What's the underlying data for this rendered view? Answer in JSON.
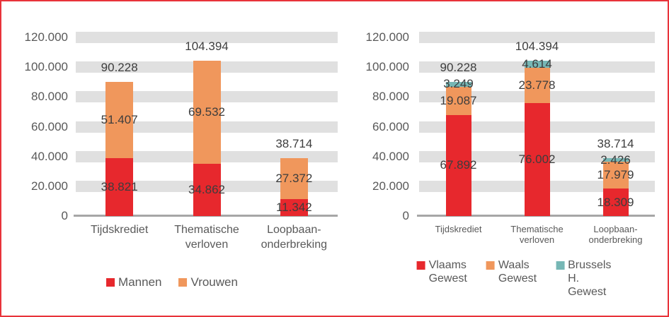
{
  "page": {
    "background": "#ffffff",
    "frame_border_color": "#E8333A"
  },
  "palette": {
    "red": "#E7282D",
    "orange": "#F0975C",
    "teal": "#76B7B5",
    "gridline_band": "#E0E0E0",
    "axis_line": "#A6A6A6",
    "axis_text": "#595959",
    "value_text": "#3D3D3D"
  },
  "chart_data": [
    {
      "type": "bar",
      "stacked": true,
      "title": "",
      "categories": [
        "Tijdskrediet",
        "Thematische verloven",
        "Loopbaan-onderbreking"
      ],
      "category_label_lines": [
        [
          "Tijdskrediet"
        ],
        [
          "Thematische",
          "verloven"
        ],
        [
          "Loopbaan-",
          "onderbreking"
        ]
      ],
      "series": [
        {
          "name": "Mannen",
          "color_key": "red",
          "values": [
            38821,
            34862,
            11342
          ],
          "value_labels": [
            "38.821",
            "34.862",
            "11.342"
          ],
          "legend_lines": [
            "Mannen"
          ]
        },
        {
          "name": "Vrouwen",
          "color_key": "orange",
          "values": [
            51407,
            69532,
            27372
          ],
          "value_labels": [
            "51.407",
            "69.532",
            "27.372"
          ],
          "legend_lines": [
            "Vrouwen"
          ]
        }
      ],
      "totals": [
        90228,
        104394,
        38714
      ],
      "total_labels": [
        "90.228",
        "104.394",
        "38.714"
      ],
      "y_axis": {
        "min": 0,
        "max": 120000,
        "tick_step": 20000,
        "tick_labels": [
          "0",
          "20.000",
          "40.000",
          "60.000",
          "80.000",
          "100.000",
          "120.000"
        ]
      },
      "grid": "thick-band",
      "legend_position": "bottom"
    },
    {
      "type": "bar",
      "stacked": true,
      "title": "",
      "categories": [
        "Tijdskrediet",
        "Thematische verloven",
        "Loopbaan-onderbreking"
      ],
      "category_label_lines": [
        [
          "Tijdskrediet"
        ],
        [
          "Thematische",
          "verloven"
        ],
        [
          "Loopbaan-",
          "onderbreking"
        ]
      ],
      "series": [
        {
          "name": "Vlaams Gewest",
          "color_key": "red",
          "values": [
            67892,
            76002,
            18309
          ],
          "value_labels": [
            "67.892",
            "76.002",
            "18.309"
          ],
          "legend_lines": [
            "Vlaams",
            "Gewest"
          ]
        },
        {
          "name": "Waals Gewest",
          "color_key": "orange",
          "values": [
            19087,
            23778,
            17979
          ],
          "value_labels": [
            "19.087",
            "23.778",
            "17.979"
          ],
          "legend_lines": [
            "Waals",
            "Gewest"
          ]
        },
        {
          "name": "Brussels H. Gewest",
          "color_key": "teal",
          "values": [
            3249,
            4614,
            2426
          ],
          "value_labels": [
            "3.249",
            "4.614",
            "2.426"
          ],
          "legend_lines": [
            "Brussels H.",
            "Gewest"
          ]
        }
      ],
      "totals": [
        90228,
        104394,
        38714
      ],
      "total_labels": [
        "90.228",
        "104.394",
        "38.714"
      ],
      "y_axis": {
        "min": 0,
        "max": 120000,
        "tick_step": 20000,
        "tick_labels": [
          "0",
          "20.000",
          "40.000",
          "60.000",
          "80.000",
          "100.000",
          "120.000"
        ]
      },
      "grid": "thick-band",
      "legend_position": "bottom"
    }
  ]
}
